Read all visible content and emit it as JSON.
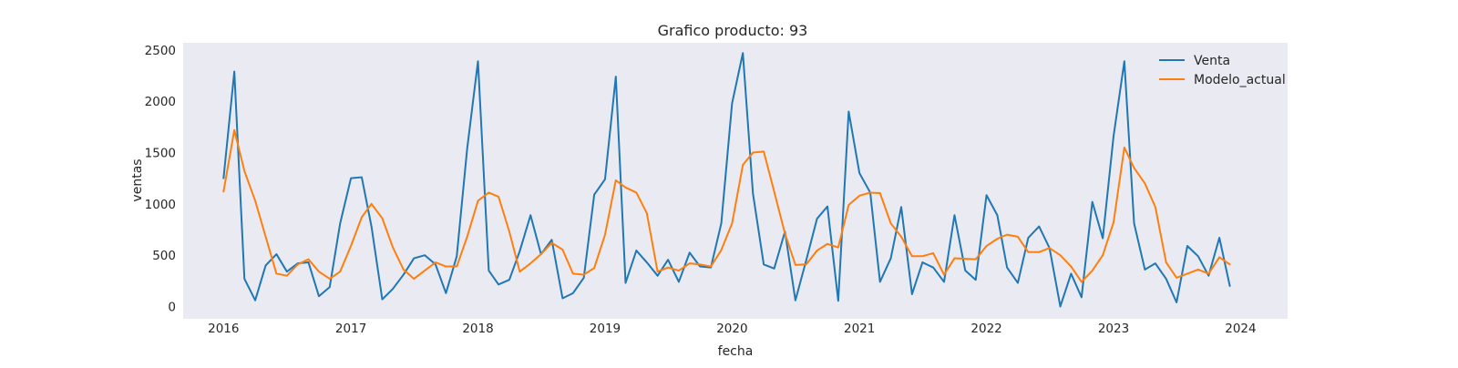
{
  "chart_data": {
    "type": "line",
    "title": "Grafico producto: 93",
    "xlabel": "fecha",
    "ylabel": "ventas",
    "ylim": [
      -120,
      2570
    ],
    "xlim": [
      "2015-09-07",
      "2024-05-15"
    ],
    "x_ticks": [
      "2016",
      "2017",
      "2018",
      "2019",
      "2020",
      "2021",
      "2022",
      "2023",
      "2024"
    ],
    "y_ticks": [
      0,
      500,
      1000,
      1500,
      2000,
      2500
    ],
    "grid": false,
    "background": "#eaeaf2",
    "legend": {
      "placement": "top-right"
    },
    "x_start": "2016-01",
    "x_frequency": "monthly",
    "series": [
      {
        "name": "Venta",
        "color": "#1f77b4",
        "values": [
          1250,
          2290,
          270,
          60,
          400,
          510,
          340,
          420,
          430,
          100,
          190,
          810,
          1250,
          1260,
          780,
          70,
          170,
          310,
          470,
          500,
          410,
          130,
          490,
          1540,
          2390,
          350,
          215,
          260,
          540,
          890,
          510,
          650,
          80,
          130,
          280,
          1090,
          1240,
          2240,
          230,
          545,
          430,
          300,
          455,
          240,
          525,
          390,
          380,
          810,
          1980,
          2470,
          1100,
          410,
          370,
          730,
          60,
          450,
          855,
          975,
          55,
          1900,
          1300,
          1110,
          240,
          470,
          970,
          120,
          430,
          380,
          240,
          890,
          350,
          260,
          1085,
          890,
          380,
          230,
          670,
          780,
          570,
          0,
          320,
          90,
          1020,
          665,
          1660,
          2390,
          810,
          360,
          420,
          270,
          40,
          590,
          490,
          300,
          670,
          200
        ]
      },
      {
        "name": "Modelo_actual",
        "color": "#ff7f0e",
        "values": [
          1120,
          1720,
          1320,
          1030,
          680,
          320,
          300,
          410,
          460,
          340,
          270,
          340,
          590,
          870,
          1000,
          860,
          580,
          360,
          270,
          350,
          430,
          390,
          390,
          680,
          1030,
          1110,
          1070,
          730,
          340,
          420,
          510,
          620,
          555,
          320,
          310,
          375,
          700,
          1230,
          1160,
          1110,
          910,
          340,
          380,
          350,
          420,
          410,
          390,
          550,
          810,
          1380,
          1500,
          1510,
          1120,
          710,
          405,
          410,
          545,
          610,
          575,
          990,
          1080,
          1110,
          1105,
          810,
          680,
          490,
          490,
          520,
          310,
          470,
          465,
          460,
          590,
          660,
          700,
          680,
          530,
          530,
          570,
          500,
          390,
          240,
          350,
          500,
          820,
          1550,
          1350,
          1200,
          970,
          430,
          280,
          320,
          360,
          320,
          480,
          410
        ]
      }
    ]
  }
}
